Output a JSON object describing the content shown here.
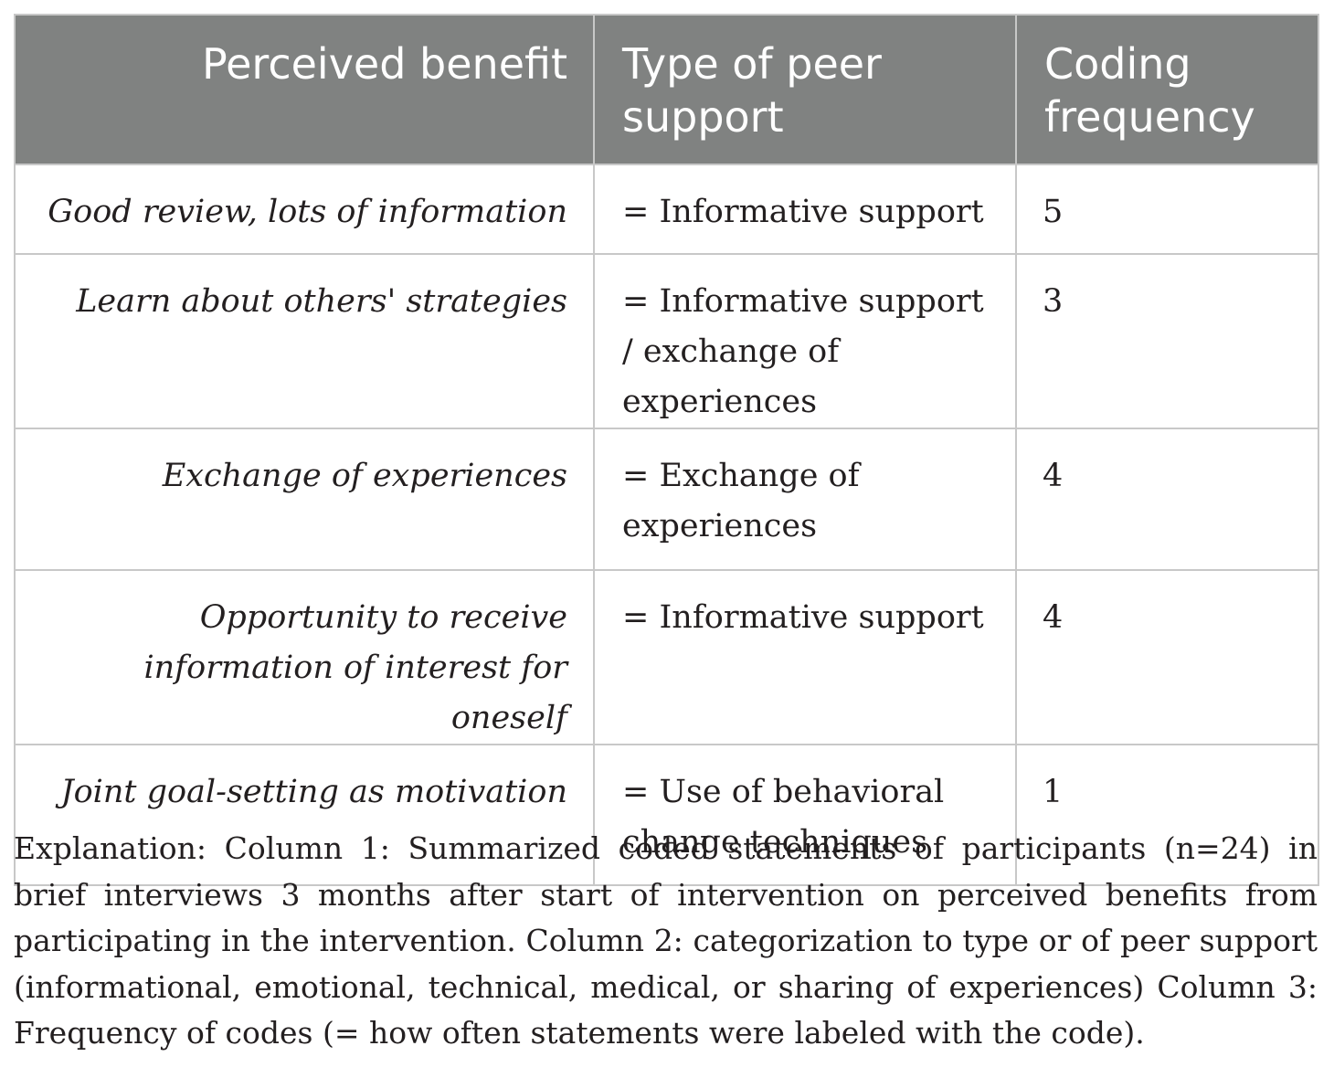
{
  "table": {
    "headers": {
      "benefit": "Perceived benefit",
      "type": "Type of peer support",
      "frequency": "Coding frequency"
    },
    "rows": [
      {
        "benefit": "Good review, lots of information",
        "type": "= Informative support",
        "frequency": "5"
      },
      {
        "benefit": "Learn about others' strategies",
        "type": "= Informative support / exchange of experiences",
        "frequency": "3"
      },
      {
        "benefit": "Exchange of experiences",
        "type": "= Exchange of experiences",
        "frequency": "4"
      },
      {
        "benefit": "Opportunity to receive information of interest for oneself",
        "type": "= Informative support",
        "frequency": "4"
      },
      {
        "benefit": "Joint goal-setting as motivation",
        "type": "= Use of behavioral change techniques",
        "frequency": "1"
      }
    ]
  },
  "caption": "Explanation: Column 1: Summarized coded statements of participants (n=24) in brief interviews 3 months after start of intervention on perceived benefits from participating in the intervention. Column 2: categorization to type or of peer support (informational, emotional, technical, medical, or sharing of experiences) Column 3: Frequency of codes (= how often statements were labeled with the code)."
}
